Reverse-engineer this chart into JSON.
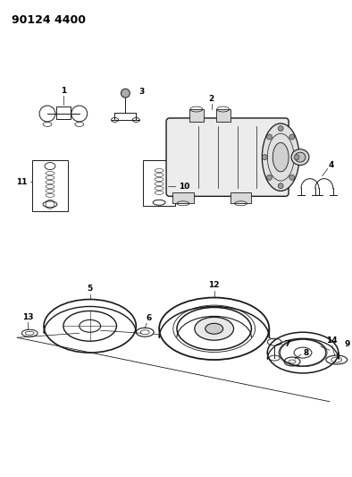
{
  "title": "90124 4400",
  "bg_color": "#ffffff",
  "line_color": "#1a1a1a",
  "title_fontsize": 9,
  "fig_width": 3.94,
  "fig_height": 5.33,
  "dpi": 100
}
